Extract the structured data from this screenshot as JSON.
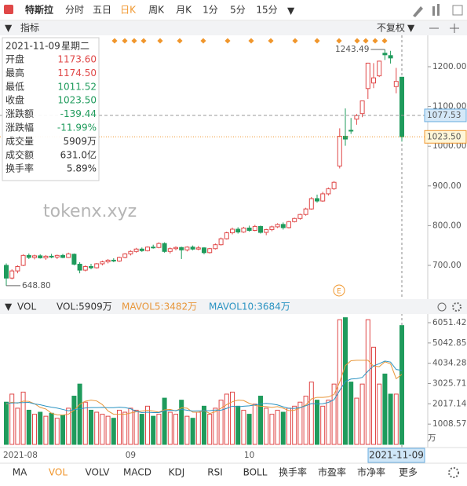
{
  "toolbar": {
    "name": "特斯拉",
    "periods": [
      "分时",
      "五日",
      "日K",
      "周K",
      "月K",
      "1分",
      "5分",
      "15分"
    ],
    "active": 2
  },
  "indicator_bar": {
    "label": "指标",
    "adjust": "不复权"
  },
  "info": {
    "date": "2021-11-09",
    "weekday": "星期二",
    "rows": [
      [
        "开盘",
        "1173.60"
      ],
      [
        "最高",
        "1174.50"
      ],
      [
        "最低",
        "1011.52"
      ],
      [
        "收盘",
        "1023.50"
      ],
      [
        "涨跌额",
        "-139.44"
      ],
      [
        "涨跌幅",
        "-11.99%"
      ],
      [
        "成交量",
        "5909万"
      ],
      [
        "成交额",
        "631.0亿"
      ],
      [
        "换手率",
        "5.89%"
      ]
    ]
  },
  "watermark": "tokenx.xyz",
  "chart_data": [
    {
      "type": "candlestick",
      "up_color": "#e04848",
      "down_color": "#1f9b5c",
      "categories": [
        "2021-08",
        null,
        null,
        null,
        null,
        null,
        null,
        null,
        null,
        null,
        null,
        null,
        null,
        null,
        null,
        null,
        null,
        null,
        null,
        null,
        null,
        null,
        "09",
        null,
        null,
        null,
        null,
        null,
        null,
        null,
        null,
        null,
        null,
        null,
        null,
        null,
        null,
        null,
        null,
        null,
        null,
        null,
        null,
        "10",
        null,
        null,
        null,
        null,
        null,
        null,
        null,
        null,
        null,
        null,
        null,
        null,
        null,
        null,
        null,
        null,
        null,
        null,
        null,
        null,
        null,
        null,
        null,
        null,
        null,
        null,
        "2021-11-09"
      ],
      "ohlc": [
        [
          700,
          705,
          648.8,
          668
        ],
        [
          668,
          690,
          665,
          686
        ],
        [
          686,
          700,
          680,
          697
        ],
        [
          700,
          728,
          698,
          725
        ],
        [
          725,
          730,
          716,
          720
        ],
        [
          720,
          727,
          715,
          724
        ],
        [
          724,
          728,
          717,
          719
        ],
        [
          719,
          726,
          714,
          723
        ],
        [
          723,
          729,
          718,
          721
        ],
        [
          721,
          727,
          716,
          725
        ],
        [
          725,
          729,
          718,
          720
        ],
        [
          720,
          732,
          719,
          729
        ],
        [
          728,
          730,
          700,
          703
        ],
        [
          703,
          708,
          680,
          688
        ],
        [
          688,
          700,
          685,
          697
        ],
        [
          697,
          704,
          690,
          694
        ],
        [
          694,
          706,
          692,
          704
        ],
        [
          704,
          712,
          700,
          709
        ],
        [
          709,
          716,
          705,
          713
        ],
        [
          713,
          718,
          708,
          711
        ],
        [
          711,
          722,
          709,
          720
        ],
        [
          720,
          731,
          718,
          729
        ],
        [
          729,
          738,
          725,
          735
        ],
        [
          735,
          744,
          732,
          741
        ],
        [
          741,
          745,
          734,
          737
        ],
        [
          737,
          748,
          735,
          746
        ],
        [
          746,
          752,
          742,
          745
        ],
        [
          745,
          758,
          743,
          755
        ],
        [
          755,
          758,
          732,
          735
        ],
        [
          735,
          745,
          730,
          742
        ],
        [
          742,
          748,
          738,
          745
        ],
        [
          745,
          747,
          716,
          739
        ],
        [
          739,
          748,
          735,
          746
        ],
        [
          746,
          750,
          738,
          741
        ],
        [
          741,
          749,
          738,
          744
        ],
        [
          744,
          746,
          728,
          732
        ],
        [
          732,
          744,
          730,
          742
        ],
        [
          742,
          755,
          740,
          752
        ],
        [
          752,
          770,
          750,
          767
        ],
        [
          767,
          785,
          765,
          782
        ],
        [
          782,
          795,
          778,
          791
        ],
        [
          791,
          796,
          780,
          784
        ],
        [
          784,
          797,
          782,
          794
        ],
        [
          794,
          800,
          785,
          788
        ],
        [
          788,
          802,
          786,
          798
        ],
        [
          798,
          800,
          780,
          783
        ],
        [
          783,
          792,
          776,
          790
        ],
        [
          790,
          800,
          786,
          797
        ],
        [
          797,
          806,
          794,
          803
        ],
        [
          803,
          808,
          790,
          795
        ],
        [
          795,
          812,
          793,
          810
        ],
        [
          810,
          820,
          808,
          818
        ],
        [
          818,
          830,
          815,
          828
        ],
        [
          828,
          845,
          825,
          842
        ],
        [
          842,
          872,
          840,
          868
        ],
        [
          868,
          878,
          858,
          862
        ],
        [
          862,
          885,
          860,
          880
        ],
        [
          880,
          896,
          876,
          893
        ],
        [
          893,
          912,
          890,
          909
        ],
        [
          950,
          1045,
          944,
          1025
        ],
        [
          1025,
          1095,
          1001,
          1018
        ],
        [
          1040,
          1071,
          1031,
          1038
        ],
        [
          1068,
          1081,
          1054,
          1077
        ],
        [
          1082,
          1115,
          1073,
          1114
        ],
        [
          1145,
          1210,
          1119,
          1209
        ],
        [
          1159,
          1209,
          1146,
          1172
        ],
        [
          1177,
          1215,
          1174,
          1214
        ],
        [
          1234,
          1243.49,
          1217,
          1230
        ],
        [
          1228,
          1240,
          1208,
          1222
        ],
        [
          1150,
          1197,
          1133,
          1163
        ],
        [
          1173.6,
          1174.5,
          1011.52,
          1023.5
        ]
      ],
      "ylim": [
        617,
        1279
      ],
      "yticks": [
        {
          "value": 700,
          "label": "700.00"
        },
        {
          "value": 800,
          "label": "800.00"
        },
        {
          "value": 900,
          "label": "900.00"
        },
        {
          "value": 1000,
          "label": "1000.00"
        },
        {
          "value": 1100,
          "label": "1100.00"
        },
        {
          "value": 1200,
          "label": "1200.00"
        }
      ],
      "annotations": [
        1243.49,
        {
          "value": 648.8,
          "label": "648.80"
        }
      ],
      "price_lines": [
        1077.53,
        {
          "value": 1023.5,
          "label": "1023.50"
        }
      ]
    },
    {
      "type": "volume",
      "title": "VOL",
      "unit": "万",
      "ylim": [
        0,
        6481
      ],
      "yticks": [
        1008.57,
        2017.14,
        3025.71,
        4034.28,
        5042.85,
        6051.42
      ],
      "series": [
        {
          "name": "VOL:5909万",
          "color": "#333333",
          "values": [
            2100,
            2500,
            1800,
            2600,
            1700,
            1500,
            1600,
            1400,
            1550,
            1300,
            1450,
            1800,
            2400,
            3000,
            2100,
            1700,
            1600,
            1500,
            1400,
            1300,
            1700,
            1600,
            1800,
            1700,
            1500,
            1900,
            1400,
            1500,
            2300,
            1600,
            1500,
            2200,
            1400,
            1300,
            1600,
            1900,
            1500,
            1800,
            2200,
            2500,
            2600,
            1900,
            1700,
            1500,
            2000,
            2400,
            1800,
            1500,
            1700,
            1600,
            1800,
            1900,
            2100,
            2400,
            3100,
            2200,
            1900,
            2200,
            3000,
            6200,
            6300,
            3100,
            2300,
            3000,
            6200,
            4830,
            3000,
            3500,
            2500,
            2501,
            5909
          ]
        },
        {
          "name": "MAVOL5:3482万",
          "color": "#e8963a",
          "values": [
            2000,
            2100,
            2050,
            2150,
            2140,
            2020,
            1840,
            1760,
            1550,
            1470,
            1460,
            1500,
            1700,
            1990,
            2150,
            2200,
            2160,
            1980,
            1660,
            1500,
            1500,
            1500,
            1560,
            1620,
            1660,
            1700,
            1660,
            1600,
            1720,
            1740,
            1660,
            1820,
            1800,
            1600,
            1600,
            1680,
            1540,
            1620,
            1800,
            1980,
            2120,
            2200,
            2180,
            2040,
            1940,
            1900,
            1880,
            1840,
            1880,
            1800,
            1680,
            1700,
            1820,
            1960,
            2260,
            2340,
            2340,
            2360,
            2480,
            3100,
            3920,
            4160,
            4180,
            4180,
            4180,
            3886,
            3866,
            4106,
            4006,
            3266,
            3482
          ]
        },
        {
          "name": "MAVOL10:3684万",
          "color": "#2a93c2",
          "values": [
            2050,
            2060,
            2070,
            2080,
            2090,
            2010,
            1970,
            1905,
            1850,
            1805,
            1740,
            1670,
            1730,
            1770,
            1810,
            1830,
            1830,
            1840,
            1825,
            1825,
            1850,
            1830,
            1770,
            1640,
            1580,
            1600,
            1580,
            1580,
            1670,
            1700,
            1680,
            1740,
            1700,
            1660,
            1670,
            1670,
            1680,
            1710,
            1700,
            1790,
            1900,
            1870,
            1900,
            1920,
            1960,
            2010,
            2040,
            2010,
            1960,
            1870,
            1790,
            1790,
            1830,
            1920,
            2030,
            2010,
            2020,
            2090,
            2220,
            2680,
            3130,
            3250,
            3270,
            3330,
            3640,
            3903,
            4013,
            4143,
            4093,
            3723,
            3684
          ]
        }
      ]
    }
  ],
  "tabs": [
    "MA",
    "VOL",
    "VOLV",
    "MACD",
    "KDJ",
    "RSI",
    "BOLL",
    "换手率",
    "市盈率",
    "市净率",
    "更多"
  ],
  "active_tab": 1
}
